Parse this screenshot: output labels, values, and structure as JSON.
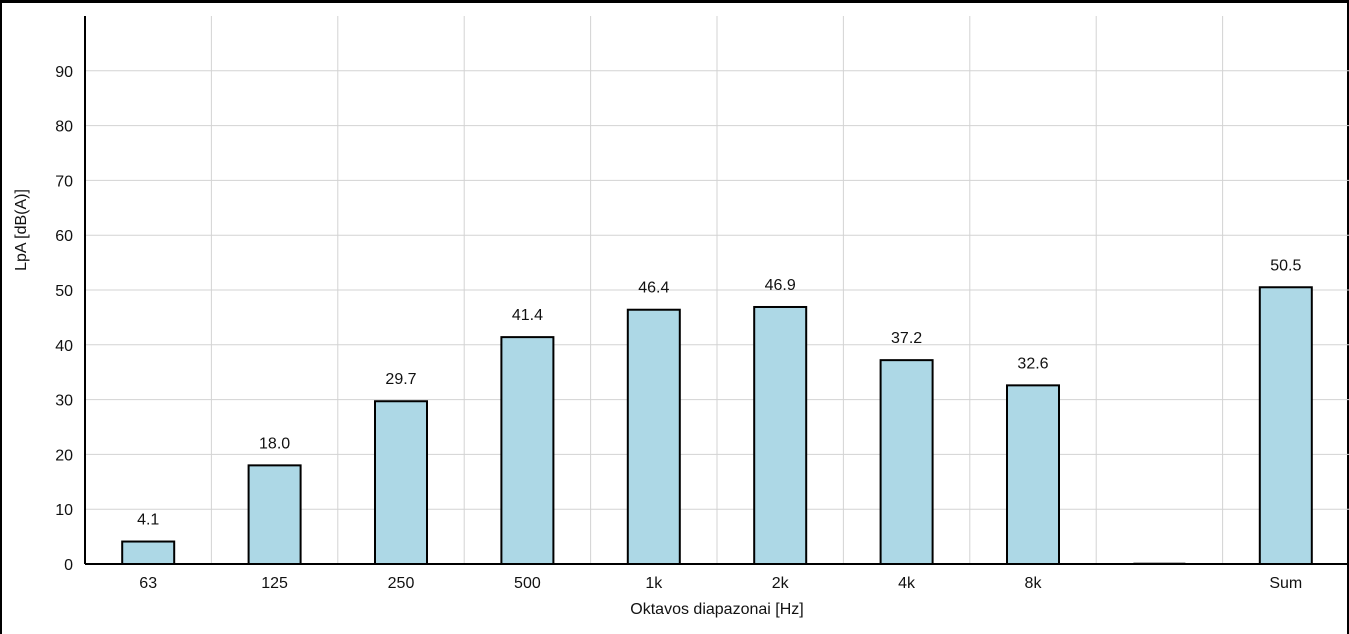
{
  "chart_data": {
    "type": "bar",
    "categories": [
      "63",
      "125",
      "250",
      "500",
      "1k",
      "2k",
      "4k",
      "8k",
      "",
      "Sum"
    ],
    "values": [
      4.1,
      18.0,
      29.7,
      41.4,
      46.4,
      46.9,
      37.2,
      32.6,
      null,
      50.5
    ],
    "value_labels": [
      "4.1",
      "18.0",
      "29.7",
      "41.4",
      "46.4",
      "46.9",
      "37.2",
      "32.6",
      "",
      "50.5"
    ],
    "xlabel": "Oktavos diapazonai [Hz]",
    "ylabel": "LpA [dB(A)]",
    "ylim": [
      0,
      100
    ],
    "yticks": [
      0,
      10,
      20,
      30,
      40,
      50,
      60,
      70,
      80,
      90
    ],
    "grid": true,
    "bar_color": "#add8e6",
    "bar_edge_color": "#000000",
    "grid_color": "#d3d3d3"
  }
}
